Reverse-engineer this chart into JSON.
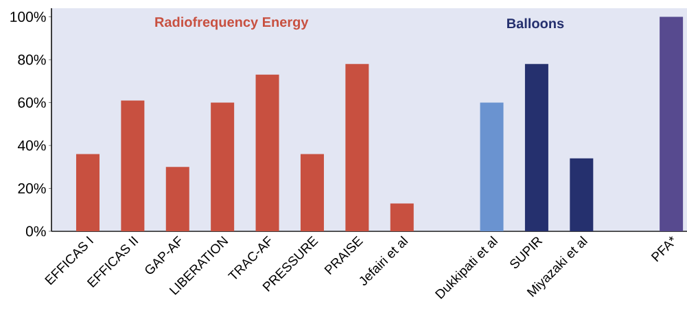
{
  "chart_data": {
    "type": "bar",
    "categories": [
      "EFFICAS I",
      "EFFICAS II",
      "GAP-AF",
      "LIBERATION",
      "TRAC-AF",
      "PRESSURE",
      "PRAISE",
      "Jefairi et al",
      null,
      "Dukkipati et al",
      "SUPIR",
      "Miyazaki et al",
      null,
      "PFA*"
    ],
    "values": [
      36,
      61,
      30,
      60,
      73,
      36,
      78,
      13,
      null,
      60,
      78,
      34,
      null,
      100
    ],
    "colors": [
      "#c85040",
      "#c85040",
      "#c85040",
      "#c85040",
      "#c85040",
      "#c85040",
      "#c85040",
      "#c85040",
      null,
      "#6a93d0",
      "#25306e",
      "#25306e",
      null,
      "#574a8f"
    ],
    "ylim": [
      0,
      104
    ],
    "yticks": [
      {
        "value": 0,
        "label": "0%"
      },
      {
        "value": 20,
        "label": "20%"
      },
      {
        "value": 40,
        "label": "40%"
      },
      {
        "value": 60,
        "label": "60%"
      },
      {
        "value": 80,
        "label": "80%"
      },
      {
        "value": 100,
        "label": "100%"
      }
    ],
    "annotations": [
      "Radiofrequency Energy",
      "Balloons"
    ]
  }
}
